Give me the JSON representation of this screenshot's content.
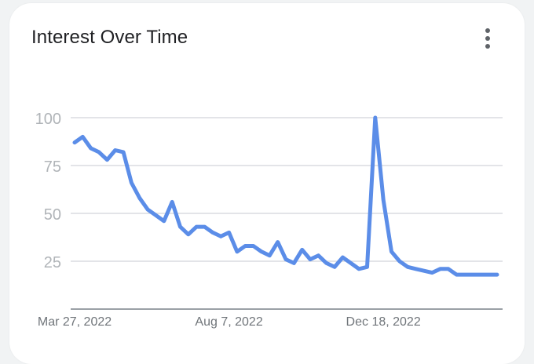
{
  "header": {
    "title": "Interest Over Time",
    "menu_icon": "more-vert-icon"
  },
  "colors": {
    "line": "#5b8de8",
    "grid": "#dadce0",
    "axis": "#9aa0a6",
    "tick_text": "#b0b4b8",
    "xtick_text": "#70757a"
  },
  "chart_data": {
    "type": "line",
    "title": "Interest Over Time",
    "xlabel": "",
    "ylabel": "",
    "ylim": [
      0,
      100
    ],
    "yticks": [
      25,
      50,
      75,
      100
    ],
    "ytick_labels": [
      "25",
      "50",
      "75",
      "100"
    ],
    "xtick_labels": [
      "Mar 27, 2022",
      "Aug 7, 2022",
      "Dec 18, 2022"
    ],
    "grid": true,
    "legend": "none",
    "x": [
      "2022-03-27",
      "2022-04-03",
      "2022-04-10",
      "2022-04-17",
      "2022-04-24",
      "2022-05-01",
      "2022-05-08",
      "2022-05-15",
      "2022-05-22",
      "2022-05-29",
      "2022-06-05",
      "2022-06-12",
      "2022-06-19",
      "2022-06-26",
      "2022-07-03",
      "2022-07-10",
      "2022-07-17",
      "2022-07-24",
      "2022-07-31",
      "2022-08-07",
      "2022-08-14",
      "2022-08-21",
      "2022-08-28",
      "2022-09-04",
      "2022-09-11",
      "2022-09-18",
      "2022-09-25",
      "2022-10-02",
      "2022-10-09",
      "2022-10-16",
      "2022-10-23",
      "2022-10-30",
      "2022-11-06",
      "2022-11-13",
      "2022-11-20",
      "2022-11-27",
      "2022-12-04",
      "2022-12-11",
      "2022-12-18",
      "2022-12-25",
      "2023-01-01",
      "2023-01-08",
      "2023-01-15",
      "2023-01-22",
      "2023-01-29",
      "2023-02-05",
      "2023-02-12",
      "2023-02-19",
      "2023-02-26",
      "2023-03-05",
      "2023-03-12",
      "2023-03-19",
      "2023-03-26"
    ],
    "series": [
      {
        "values": [
          87,
          90,
          84,
          82,
          78,
          83,
          82,
          66,
          58,
          52,
          49,
          46,
          56,
          43,
          39,
          43,
          43,
          40,
          38,
          40,
          30,
          33,
          33,
          30,
          28,
          35,
          26,
          24,
          31,
          26,
          28,
          24,
          22,
          27,
          24,
          21,
          22,
          100,
          57,
          30,
          25,
          22,
          21,
          20,
          19,
          21,
          21,
          18,
          18,
          18,
          18,
          18,
          18
        ]
      }
    ]
  }
}
